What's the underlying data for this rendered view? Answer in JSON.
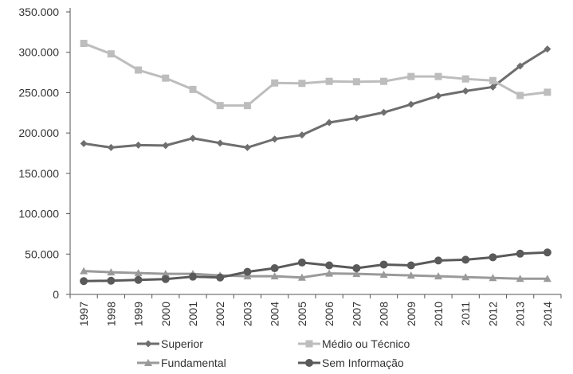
{
  "chart_data": {
    "type": "line",
    "title": "",
    "xlabel": "",
    "ylabel": "",
    "ylim": [
      0,
      350000
    ],
    "yticks": [
      0,
      50000,
      100000,
      150000,
      200000,
      250000,
      300000,
      350000
    ],
    "ytick_labels": [
      "0",
      "50.000",
      "100.000",
      "150.000",
      "200.000",
      "250.000",
      "300.000",
      "350.000"
    ],
    "categories": [
      "1997",
      "1998",
      "1999",
      "2000",
      "2001",
      "2002",
      "2003",
      "2004",
      "2005",
      "2006",
      "2007",
      "2008",
      "2009",
      "2010",
      "2011",
      "2012",
      "2013",
      "2014"
    ],
    "grid": false,
    "legend_position": "bottom",
    "series": [
      {
        "name": "Superior",
        "color": "#6e6e6e",
        "marker": "diamond",
        "values": [
          187000,
          182000,
          185000,
          184500,
          193500,
          187500,
          182000,
          192500,
          197500,
          213000,
          218500,
          225500,
          235500,
          246000,
          252000,
          257000,
          283000,
          304000
        ]
      },
      {
        "name": "Médio ou Técnico",
        "color": "#bdbdbd",
        "marker": "square",
        "values": [
          311000,
          298000,
          278000,
          268000,
          254000,
          234000,
          234000,
          262000,
          261500,
          264000,
          263500,
          264000,
          270000,
          270000,
          267000,
          265000,
          246500,
          250500
        ]
      },
      {
        "name": "Fundamental",
        "color": "#9a9a9a",
        "marker": "triangle",
        "values": [
          29000,
          27500,
          26500,
          25500,
          25500,
          23500,
          22500,
          22500,
          21000,
          26000,
          25500,
          24500,
          23500,
          22500,
          21500,
          20500,
          19500,
          19500
        ]
      },
      {
        "name": "Sem Informação",
        "color": "#5a5a5a",
        "marker": "circle",
        "values": [
          16500,
          17000,
          18000,
          19000,
          22000,
          21000,
          28000,
          32500,
          39500,
          36000,
          32500,
          37000,
          36000,
          42000,
          43000,
          46000,
          50500,
          52000
        ]
      }
    ]
  }
}
